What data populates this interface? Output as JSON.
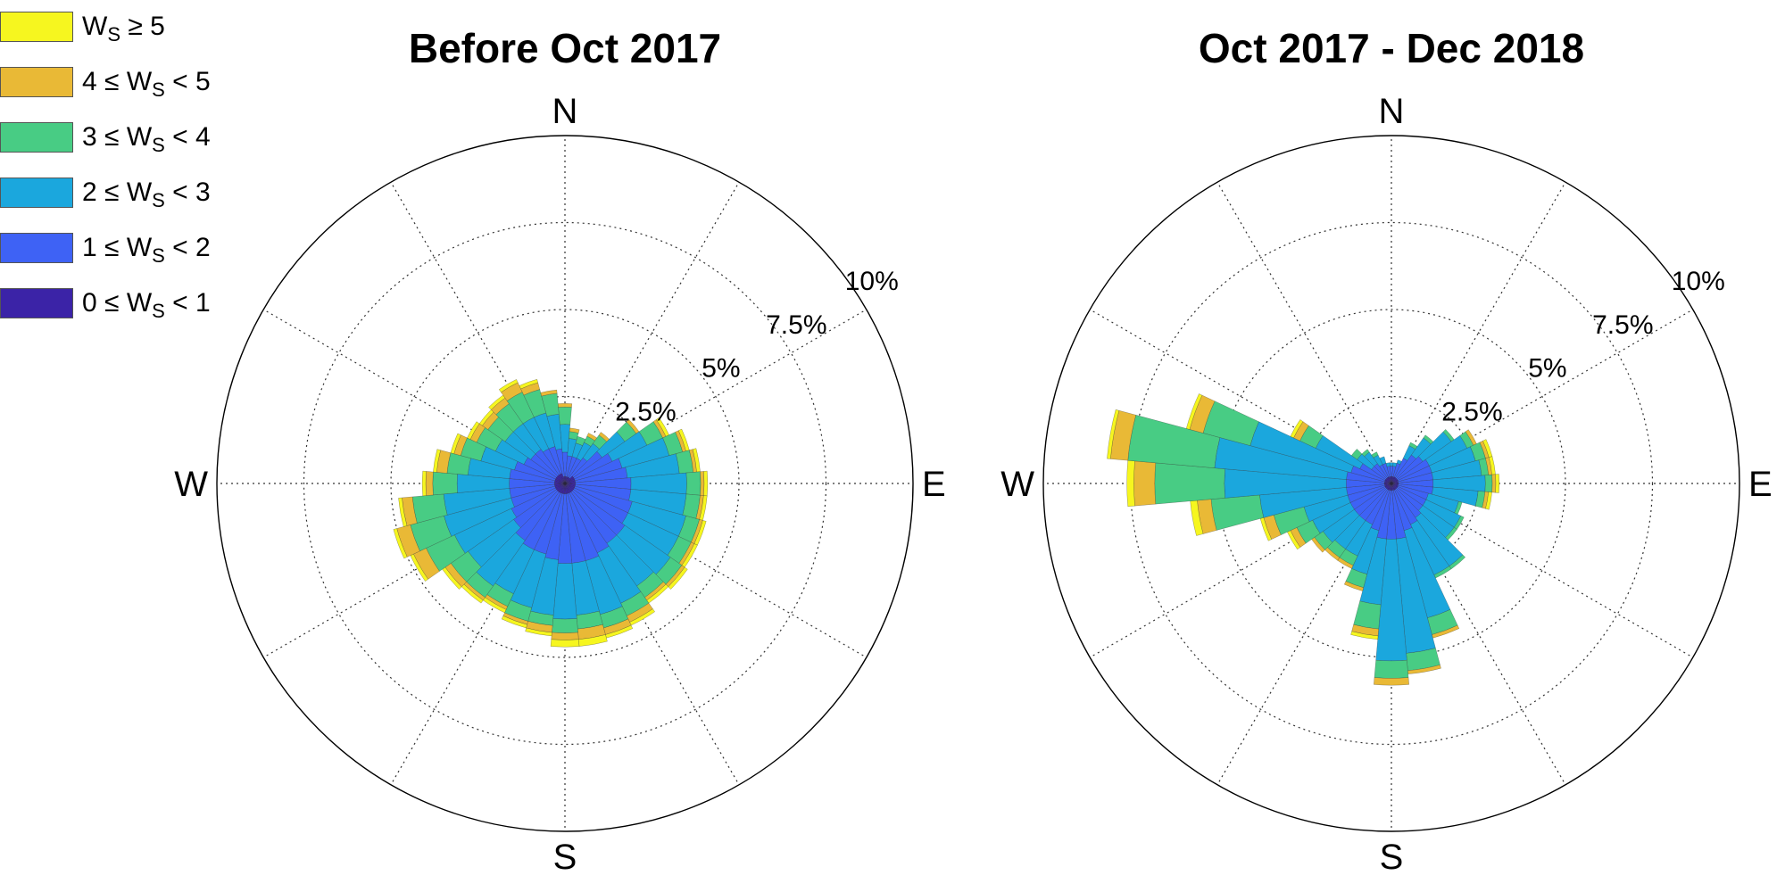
{
  "legend": {
    "items": [
      {
        "label": "W",
        "sub": "S",
        "tail": " ≥ 5",
        "head": "",
        "color": "#f6f61f"
      },
      {
        "label": "W",
        "sub": "S",
        "tail": " < 5",
        "head": "4 ≤ ",
        "color": "#e9b936"
      },
      {
        "label": "W",
        "sub": "S",
        "tail": " < 4",
        "head": "3 ≤ ",
        "color": "#48cc84"
      },
      {
        "label": "W",
        "sub": "S",
        "tail": " < 3",
        "head": "2 ≤ ",
        "color": "#1ba7dd"
      },
      {
        "label": "W",
        "sub": "S",
        "tail": " < 2",
        "head": "1 ≤ ",
        "color": "#3e62f5"
      },
      {
        "label": "W",
        "sub": "S",
        "tail": " < 1",
        "head": "0 ≤ ",
        "color": "#3b23a7"
      }
    ]
  },
  "chart_data": [
    {
      "type": "windrose",
      "title": "Before Oct 2017",
      "directions": [
        "N",
        "E",
        "S",
        "W"
      ],
      "ring_labels": [
        "2.5%",
        "5%",
        "7.5%",
        "10%"
      ],
      "rmax": 10,
      "sector_count": 36,
      "bins": [
        "0 ≤ Ws < 1",
        "1 ≤ Ws < 2",
        "2 ≤ Ws < 3",
        "3 ≤ Ws < 4",
        "4 ≤ Ws < 5",
        "Ws ≥ 5"
      ],
      "sectors": [
        [
          0.2,
          0.7,
          0.8,
          0.5,
          0.1,
          0.0
        ],
        [
          0.2,
          0.6,
          0.5,
          0.2,
          0.1,
          0.0
        ],
        [
          0.2,
          0.6,
          0.4,
          0.2,
          0.0,
          0.0
        ],
        [
          0.2,
          0.6,
          0.5,
          0.2,
          0.1,
          0.0
        ],
        [
          0.2,
          0.7,
          0.5,
          0.3,
          0.1,
          0.0
        ],
        [
          0.3,
          1.0,
          0.8,
          0.4,
          0.1,
          0.0
        ],
        [
          0.3,
          1.2,
          1.1,
          0.5,
          0.1,
          0.1
        ],
        [
          0.3,
          1.4,
          1.4,
          0.4,
          0.1,
          0.1
        ],
        [
          0.3,
          1.5,
          1.5,
          0.4,
          0.1,
          0.1
        ],
        [
          0.3,
          1.6,
          1.6,
          0.4,
          0.1,
          0.1
        ],
        [
          0.3,
          1.6,
          1.6,
          0.4,
          0.1,
          0.1
        ],
        [
          0.3,
          1.7,
          1.6,
          0.4,
          0.1,
          0.1
        ],
        [
          0.3,
          1.7,
          1.6,
          0.4,
          0.1,
          0.1
        ],
        [
          0.3,
          1.8,
          1.6,
          0.4,
          0.1,
          0.1
        ],
        [
          0.3,
          1.8,
          1.5,
          0.4,
          0.1,
          0.1
        ],
        [
          0.3,
          1.9,
          1.6,
          0.4,
          0.2,
          0.1
        ],
        [
          0.3,
          2.0,
          1.6,
          0.4,
          0.2,
          0.1
        ],
        [
          0.3,
          2.0,
          1.5,
          0.4,
          0.3,
          0.2
        ],
        [
          0.3,
          2.0,
          1.6,
          0.4,
          0.2,
          0.2
        ],
        [
          0.3,
          1.9,
          1.6,
          0.3,
          0.2,
          0.1
        ],
        [
          0.3,
          1.8,
          1.6,
          0.4,
          0.1,
          0.1
        ],
        [
          0.3,
          1.8,
          1.4,
          0.4,
          0.1,
          0.1
        ],
        [
          0.3,
          1.7,
          1.6,
          0.4,
          0.1,
          0.1
        ],
        [
          0.3,
          1.5,
          1.6,
          0.6,
          0.2,
          0.1
        ],
        [
          0.3,
          1.4,
          1.8,
          0.9,
          0.4,
          0.1
        ],
        [
          0.3,
          1.3,
          2.0,
          1.0,
          0.4,
          0.1
        ],
        [
          0.3,
          1.3,
          1.9,
          0.9,
          0.3,
          0.1
        ],
        [
          0.3,
          1.3,
          1.5,
          0.7,
          0.2,
          0.1
        ],
        [
          0.3,
          1.3,
          1.2,
          0.6,
          0.3,
          0.1
        ],
        [
          0.3,
          1.2,
          1.0,
          0.6,
          0.2,
          0.1
        ],
        [
          0.3,
          1.0,
          0.9,
          0.6,
          0.2,
          0.1
        ],
        [
          0.3,
          0.9,
          0.9,
          0.6,
          0.2,
          0.1
        ],
        [
          0.3,
          0.9,
          0.9,
          0.7,
          0.2,
          0.1
        ],
        [
          0.3,
          0.8,
          1.0,
          0.8,
          0.3,
          0.1
        ],
        [
          0.3,
          0.8,
          1.0,
          0.7,
          0.2,
          0.1
        ],
        [
          0.2,
          0.8,
          1.0,
          0.6,
          0.1,
          0.0
        ]
      ]
    },
    {
      "type": "windrose",
      "title": "Oct 2017 - Dec 2018",
      "directions": [
        "N",
        "E",
        "S",
        "W"
      ],
      "ring_labels": [
        "2.5%",
        "5%",
        "7.5%",
        "10%"
      ],
      "rmax": 10,
      "sector_count": 36,
      "bins": [
        "0 ≤ Ws < 1",
        "1 ≤ Ws < 2",
        "2 ≤ Ws < 3",
        "3 ≤ Ws < 4",
        "4 ≤ Ws < 5",
        "Ws ≥ 5"
      ],
      "sectors": [
        [
          0.2,
          0.3,
          0.1,
          0.0,
          0.0,
          0.0
        ],
        [
          0.2,
          0.3,
          0.1,
          0.0,
          0.0,
          0.0
        ],
        [
          0.2,
          0.4,
          0.1,
          0.0,
          0.0,
          0.0
        ],
        [
          0.2,
          0.6,
          0.4,
          0.1,
          0.0,
          0.0
        ],
        [
          0.2,
          0.8,
          0.6,
          0.1,
          0.0,
          0.0
        ],
        [
          0.2,
          0.9,
          1.0,
          0.1,
          0.0,
          0.0
        ],
        [
          0.2,
          1.0,
          1.2,
          0.2,
          0.1,
          0.0
        ],
        [
          0.2,
          1.0,
          1.3,
          0.3,
          0.1,
          0.1
        ],
        [
          0.2,
          1.0,
          1.4,
          0.2,
          0.1,
          0.1
        ],
        [
          0.2,
          1.0,
          1.5,
          0.2,
          0.1,
          0.1
        ],
        [
          0.2,
          1.0,
          1.3,
          0.2,
          0.1,
          0.1
        ],
        [
          0.2,
          0.9,
          0.9,
          0.1,
          0.0,
          0.0
        ],
        [
          0.2,
          0.9,
          1.1,
          0.1,
          0.0,
          0.0
        ],
        [
          0.2,
          0.9,
          1.1,
          0.1,
          0.0,
          0.0
        ],
        [
          0.2,
          1.0,
          1.7,
          0.1,
          0.0,
          0.0
        ],
        [
          0.2,
          1.1,
          1.6,
          0.1,
          0.0,
          0.0
        ],
        [
          0.2,
          1.2,
          2.6,
          0.5,
          0.1,
          0.0
        ],
        [
          0.2,
          1.4,
          3.3,
          0.5,
          0.1,
          0.0
        ],
        [
          0.2,
          1.4,
          3.5,
          0.5,
          0.2,
          0.0
        ],
        [
          0.2,
          1.4,
          1.9,
          0.7,
          0.2,
          0.1
        ],
        [
          0.2,
          1.2,
          1.3,
          0.4,
          0.1,
          0.0
        ],
        [
          0.2,
          1.1,
          1.0,
          0.3,
          0.1,
          0.0
        ],
        [
          0.2,
          1.1,
          1.0,
          0.3,
          0.1,
          0.0
        ],
        [
          0.2,
          1.1,
          1.1,
          0.3,
          0.1,
          0.0
        ],
        [
          0.2,
          1.1,
          1.2,
          0.5,
          0.2,
          0.1
        ],
        [
          0.2,
          1.1,
          1.3,
          0.9,
          0.3,
          0.1
        ],
        [
          0.2,
          1.1,
          2.5,
          1.4,
          0.4,
          0.2
        ],
        [
          0.2,
          1.1,
          3.5,
          2.0,
          0.6,
          0.2
        ],
        [
          0.2,
          1.1,
          3.8,
          2.5,
          0.5,
          0.1
        ],
        [
          0.2,
          1.0,
          3.0,
          1.4,
          0.4,
          0.1
        ],
        [
          0.2,
          0.8,
          1.4,
          0.5,
          0.2,
          0.1
        ],
        [
          0.2,
          0.5,
          0.5,
          0.2,
          0.0,
          0.0
        ],
        [
          0.2,
          0.5,
          0.4,
          0.1,
          0.0,
          0.0
        ],
        [
          0.2,
          0.4,
          0.3,
          0.1,
          0.0,
          0.0
        ],
        [
          0.2,
          0.4,
          0.2,
          0.0,
          0.0,
          0.0
        ],
        [
          0.2,
          0.3,
          0.1,
          0.0,
          0.0,
          0.0
        ]
      ]
    }
  ]
}
